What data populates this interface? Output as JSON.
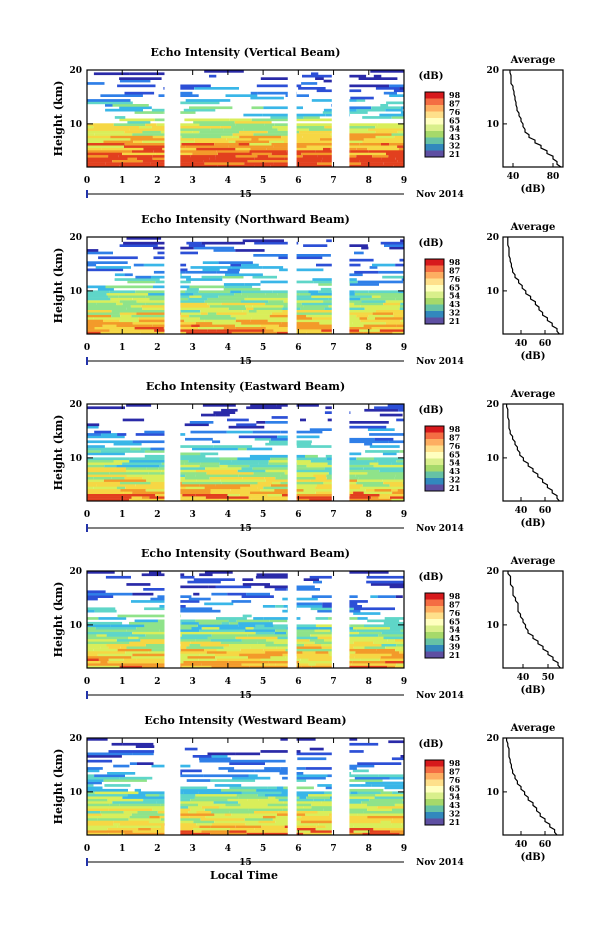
{
  "figure": {
    "xlabel_bottom": "Local Time",
    "day_label": "15",
    "month_label": "Nov 2014",
    "average_title": "Average",
    "unit_label": "(dB)",
    "height_label": "Height (km)"
  },
  "chart_data": [
    {
      "type": "heatmap",
      "title": "Echo Intensity (Vertical Beam)",
      "xlabel": "",
      "ylabel": "Height (km)",
      "x_ticks": [
        "0",
        "1",
        "2",
        "3",
        "4",
        "5",
        "6",
        "7",
        "8",
        "9"
      ],
      "y_ticks": [
        "10",
        "20"
      ],
      "xlim": [
        0,
        9
      ],
      "ylim": [
        2,
        20
      ],
      "data_gaps_hours": [
        [
          2.2,
          2.65
        ],
        [
          5.7,
          5.95
        ],
        [
          6.95,
          7.45
        ]
      ],
      "colorbar": {
        "label": "(dB)",
        "ticks": [
          "98",
          "87",
          "76",
          "65",
          "54",
          "43",
          "32",
          "21"
        ],
        "colors": [
          "#d7191c",
          "#f46d43",
          "#fdae61",
          "#fee08b",
          "#ffffbf",
          "#d9ef8b",
          "#a6d96a",
          "#66c2a5",
          "#3288bd",
          "#5e4fa2"
        ]
      },
      "average_profile": {
        "xlabel": "(dB)",
        "x_ticks": [
          "40",
          "80"
        ],
        "y_ticks": [
          "10",
          "20"
        ],
        "xlim": [
          30,
          90
        ],
        "ylim": [
          2,
          20
        ],
        "height_km": [
          2,
          3,
          4,
          5,
          6,
          7,
          8,
          9,
          10,
          11,
          12,
          13,
          14,
          15,
          16,
          17,
          18,
          19,
          20
        ],
        "intensity_db": [
          88,
          84,
          80,
          74,
          68,
          62,
          56,
          52,
          50,
          48,
          46,
          44,
          43,
          42,
          41,
          40,
          38,
          38,
          37
        ]
      }
    },
    {
      "type": "heatmap",
      "title": "Echo Intensity (Northward Beam)",
      "xlabel": "",
      "ylabel": "Height (km)",
      "x_ticks": [
        "0",
        "1",
        "2",
        "3",
        "4",
        "5",
        "6",
        "7",
        "8",
        "9"
      ],
      "y_ticks": [
        "10",
        "20"
      ],
      "xlim": [
        0,
        9
      ],
      "ylim": [
        2,
        20
      ],
      "data_gaps_hours": [
        [
          2.2,
          2.65
        ],
        [
          5.7,
          5.95
        ],
        [
          6.95,
          7.45
        ]
      ],
      "colorbar": {
        "label": "(dB)",
        "ticks": [
          "98",
          "87",
          "76",
          "65",
          "54",
          "43",
          "32",
          "21"
        ],
        "colors": [
          "#d7191c",
          "#f46d43",
          "#fdae61",
          "#fee08b",
          "#ffffbf",
          "#d9ef8b",
          "#a6d96a",
          "#66c2a5",
          "#3288bd",
          "#5e4fa2"
        ]
      },
      "average_profile": {
        "xlabel": "(dB)",
        "x_ticks": [
          "40",
          "60"
        ],
        "y_ticks": [
          "10",
          "20"
        ],
        "xlim": [
          25,
          75
        ],
        "ylim": [
          2,
          20
        ],
        "height_km": [
          2,
          3,
          4,
          5,
          6,
          7,
          8,
          9,
          10,
          11,
          12,
          13,
          14,
          15,
          16,
          17,
          18,
          19,
          20
        ],
        "intensity_db": [
          72,
          70,
          66,
          62,
          58,
          55,
          52,
          48,
          44,
          41,
          38,
          35,
          33,
          32,
          31,
          30,
          30,
          29,
          29
        ]
      }
    },
    {
      "type": "heatmap",
      "title": "Echo Intensity (Eastward Beam)",
      "xlabel": "",
      "ylabel": "Height (km)",
      "x_ticks": [
        "0",
        "1",
        "2",
        "3",
        "4",
        "5",
        "6",
        "7",
        "8",
        "9"
      ],
      "y_ticks": [
        "10",
        "20"
      ],
      "xlim": [
        0,
        9
      ],
      "ylim": [
        2,
        20
      ],
      "data_gaps_hours": [
        [
          2.2,
          2.65
        ],
        [
          5.7,
          5.95
        ],
        [
          6.95,
          7.45
        ]
      ],
      "colorbar": {
        "label": "(dB)",
        "ticks": [
          "98",
          "87",
          "76",
          "65",
          "54",
          "43",
          "32",
          "21"
        ],
        "colors": [
          "#d7191c",
          "#f46d43",
          "#fdae61",
          "#fee08b",
          "#ffffbf",
          "#d9ef8b",
          "#a6d96a",
          "#66c2a5",
          "#3288bd",
          "#5e4fa2"
        ]
      },
      "average_profile": {
        "xlabel": "(dB)",
        "x_ticks": [
          "40",
          "60"
        ],
        "y_ticks": [
          "10",
          "20"
        ],
        "xlim": [
          25,
          75
        ],
        "ylim": [
          2,
          20
        ],
        "height_km": [
          2,
          3,
          4,
          5,
          6,
          7,
          8,
          9,
          10,
          11,
          12,
          13,
          14,
          15,
          16,
          17,
          18,
          19,
          20
        ],
        "intensity_db": [
          72,
          70,
          66,
          62,
          58,
          54,
          50,
          46,
          42,
          39,
          37,
          35,
          33,
          31,
          30,
          30,
          29,
          29,
          28
        ]
      }
    },
    {
      "type": "heatmap",
      "title": "Echo Intensity (Southward Beam)",
      "xlabel": "",
      "ylabel": "Height (km)",
      "x_ticks": [
        "0",
        "1",
        "2",
        "3",
        "4",
        "5",
        "6",
        "7",
        "8",
        "9"
      ],
      "y_ticks": [
        "10",
        "20"
      ],
      "xlim": [
        0,
        9
      ],
      "ylim": [
        2,
        20
      ],
      "data_gaps_hours": [
        [
          2.2,
          2.65
        ],
        [
          5.7,
          5.95
        ],
        [
          6.95,
          7.45
        ]
      ],
      "colorbar": {
        "label": "(dB)",
        "ticks": [
          "98",
          "87",
          "76",
          "65",
          "54",
          "45",
          "39",
          "21"
        ],
        "colors": [
          "#d7191c",
          "#f46d43",
          "#fdae61",
          "#fee08b",
          "#ffffbf",
          "#d9ef8b",
          "#a6d96a",
          "#66c2a5",
          "#3288bd",
          "#5e4fa2"
        ]
      },
      "average_profile": {
        "xlabel": "(dB)",
        "x_ticks": [
          "40",
          "50"
        ],
        "y_ticks": [
          "10",
          "20"
        ],
        "xlim": [
          32,
          56
        ],
        "ylim": [
          2,
          20
        ],
        "height_km": [
          2,
          3,
          4,
          5,
          6,
          7,
          8,
          9,
          10,
          11,
          12,
          13,
          14,
          15,
          16,
          17,
          18,
          19,
          20
        ],
        "intensity_db": [
          55,
          54,
          52,
          50,
          48,
          46,
          44,
          42,
          41,
          40,
          39,
          38,
          38,
          37,
          36,
          36,
          35,
          35,
          34
        ]
      }
    },
    {
      "type": "heatmap",
      "title": "Echo Intensity (Westward Beam)",
      "xlabel": "Local Time",
      "ylabel": "Height (km)",
      "x_ticks": [
        "0",
        "1",
        "2",
        "3",
        "4",
        "5",
        "6",
        "7",
        "8",
        "9"
      ],
      "y_ticks": [
        "10",
        "20"
      ],
      "xlim": [
        0,
        9
      ],
      "ylim": [
        2,
        20
      ],
      "data_gaps_hours": [
        [
          2.2,
          2.65
        ],
        [
          5.7,
          5.95
        ],
        [
          6.95,
          7.45
        ]
      ],
      "colorbar": {
        "label": "(dB)",
        "ticks": [
          "98",
          "87",
          "76",
          "65",
          "54",
          "43",
          "32",
          "21"
        ],
        "colors": [
          "#d7191c",
          "#f46d43",
          "#fdae61",
          "#fee08b",
          "#ffffbf",
          "#d9ef8b",
          "#a6d96a",
          "#66c2a5",
          "#3288bd",
          "#5e4fa2"
        ]
      },
      "average_profile": {
        "xlabel": "(dB)",
        "x_ticks": [
          "40",
          "60"
        ],
        "y_ticks": [
          "10",
          "20"
        ],
        "xlim": [
          25,
          75
        ],
        "ylim": [
          2,
          20
        ],
        "height_km": [
          2,
          3,
          4,
          5,
          6,
          7,
          8,
          9,
          10,
          11,
          12,
          13,
          14,
          15,
          16,
          17,
          18,
          19,
          20
        ],
        "intensity_db": [
          70,
          68,
          64,
          60,
          56,
          53,
          50,
          46,
          43,
          40,
          37,
          35,
          33,
          32,
          31,
          30,
          30,
          29,
          28
        ]
      }
    }
  ]
}
